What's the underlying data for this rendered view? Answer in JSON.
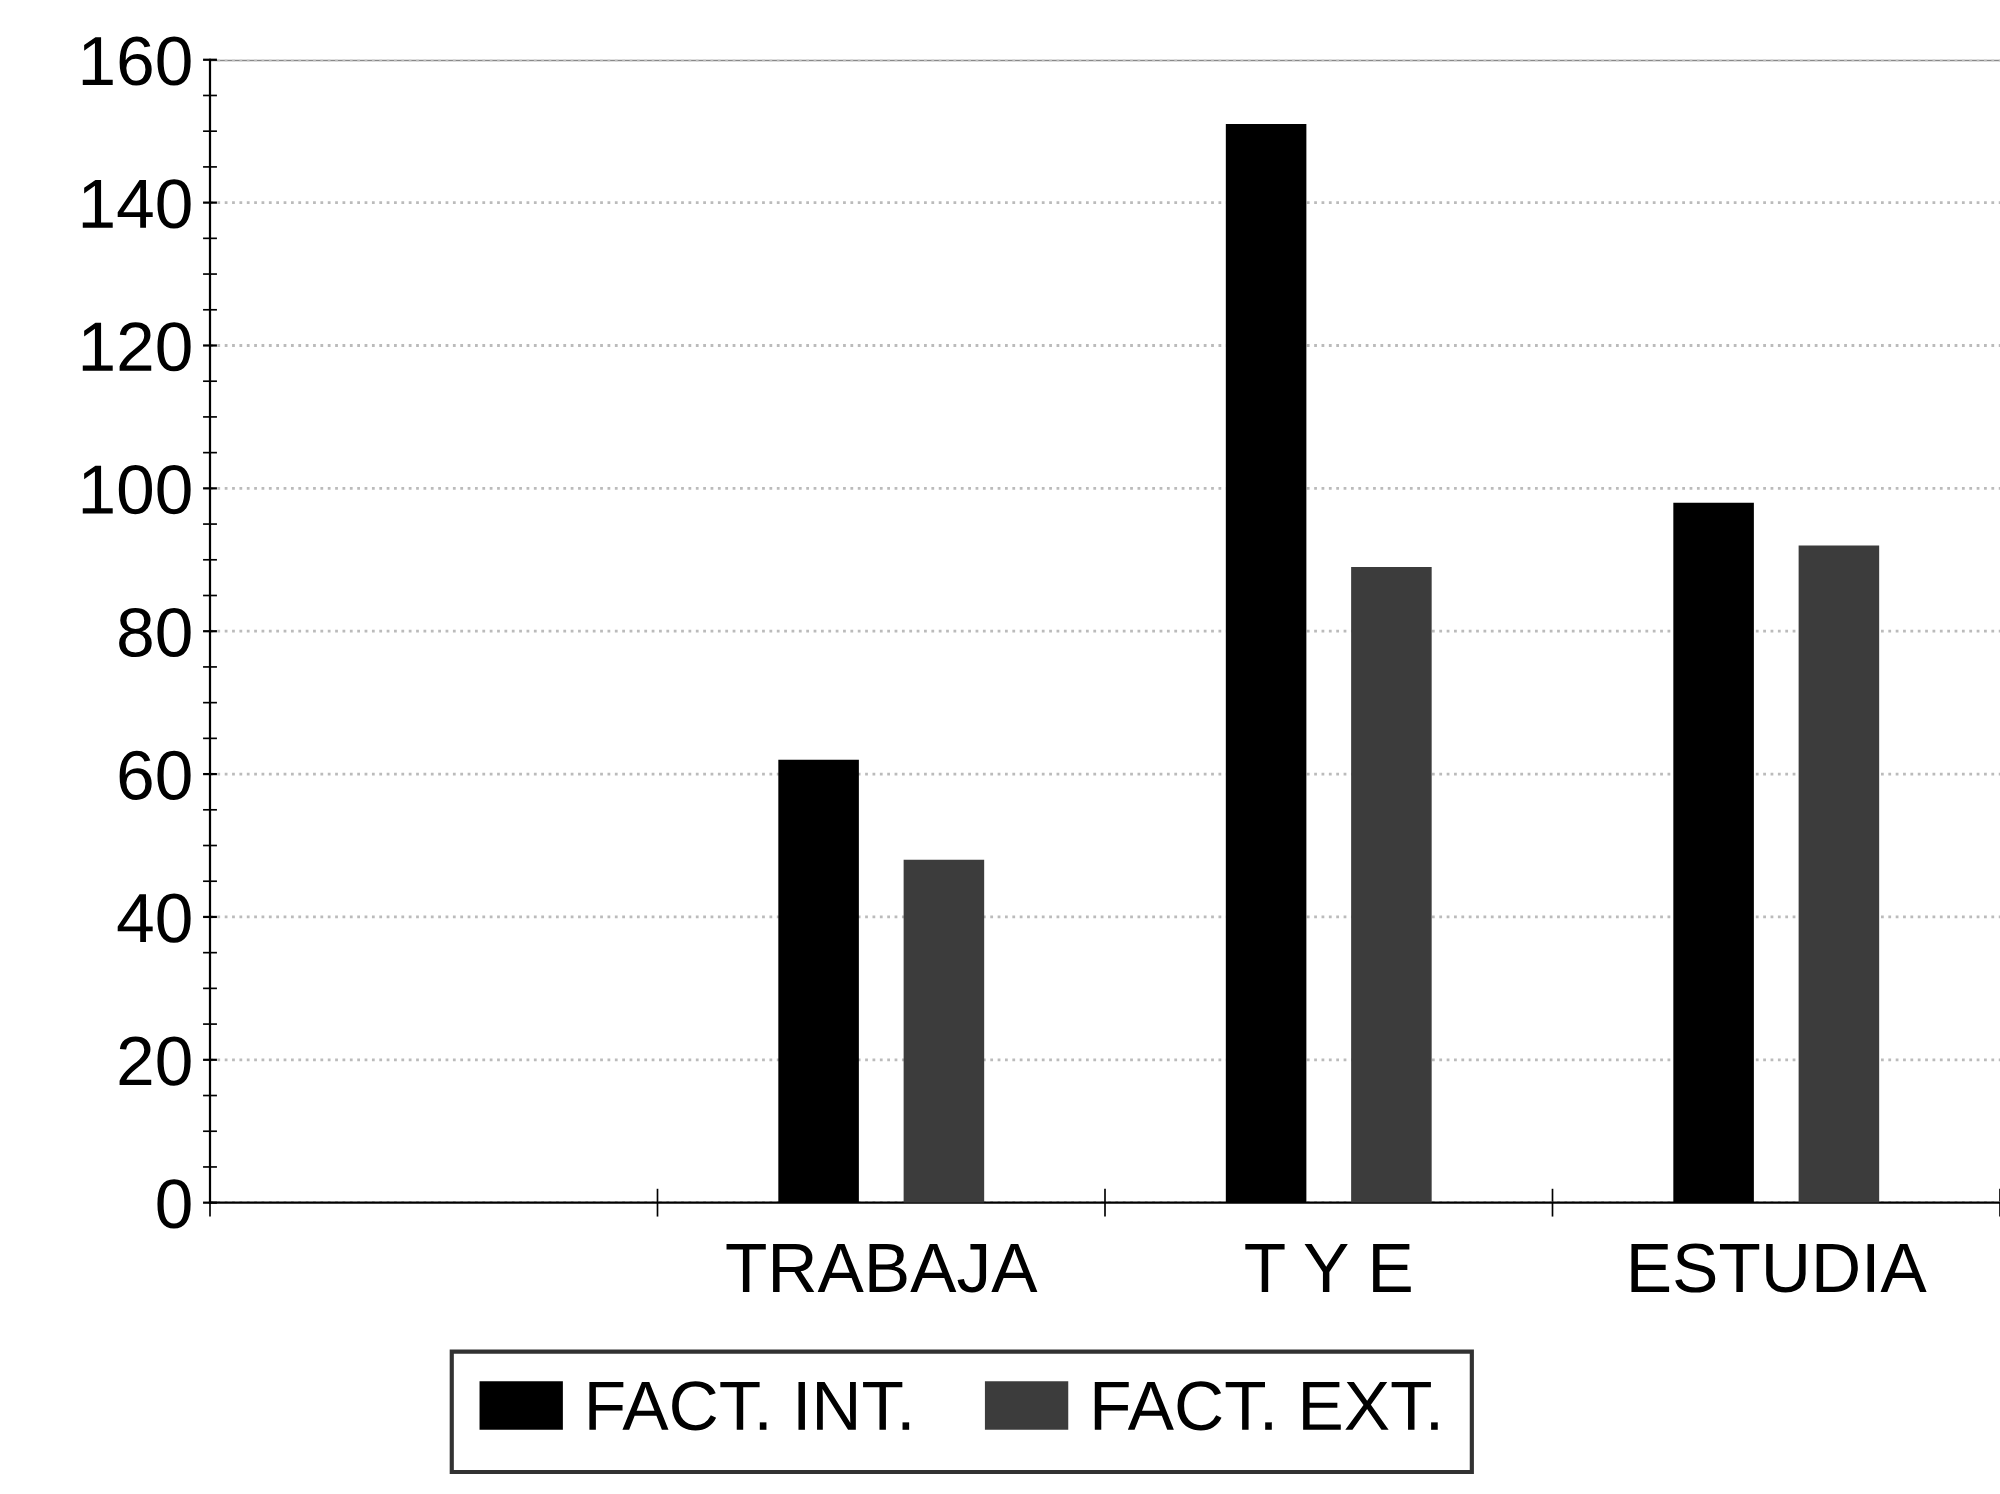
{
  "chart_data": {
    "type": "bar",
    "categories": [
      null,
      "TRABAJA",
      "T Y E",
      "ESTUDIA"
    ],
    "series": [
      {
        "name": "FACT. INT.",
        "color": "#000000",
        "values": [
          null,
          62,
          151,
          98
        ]
      },
      {
        "name": "FACT. EXT.",
        "color": "#3c3c3c",
        "values": [
          null,
          48,
          89,
          92
        ]
      }
    ],
    "ylim": [
      0,
      160
    ],
    "yticks": [
      0,
      20,
      40,
      60,
      80,
      100,
      120,
      140,
      160
    ],
    "grid": "y",
    "legend": "bottom"
  }
}
